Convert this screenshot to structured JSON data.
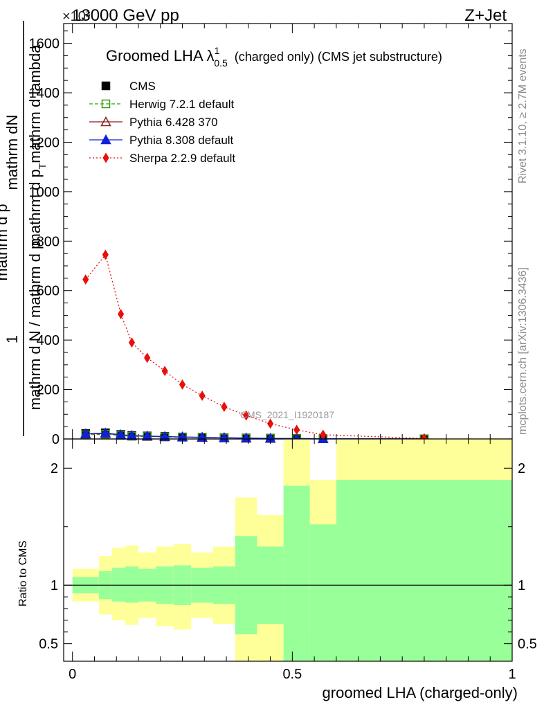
{
  "header": {
    "left": "13000 GeV pp",
    "right": "Z+Jet",
    "exponent": "×10³"
  },
  "side_labels": {
    "rivet": "Rivet 3.1.10, ≥ 2.7M events",
    "mcplots": "mcplots.cern.ch [arXiv:1306.3436]"
  },
  "watermark": "CMS_2021_I1920187",
  "chart_data": [
    {
      "type": "line",
      "title": "Groomed LHA λ",
      "title_sup": "1",
      "title_sub": "0.5",
      "title_suffix": "(charged only) (CMS jet substructure)",
      "ylabel_top": "1",
      "ylabel_frac_num": "mathrm dN",
      "ylabel_frac_den1": "mathrm d p",
      "ylabel_frac_sub": "T",
      "ylabel_frac_den2": "mathrm d lambda",
      "ylabel_bottom": "mathrm d N / mathrm d p",
      "ylabel_bottom_2": "mathrm d p",
      "ylim": [
        0,
        1680
      ],
      "xlim": [
        -0.02,
        1.0
      ],
      "yticks": [
        0,
        200,
        400,
        600,
        800,
        1000,
        1200,
        1400,
        1600
      ],
      "ytick_labels": [
        "0",
        "200",
        "400",
        "600",
        "800",
        "1000",
        "1200",
        "1400",
        "1600"
      ],
      "legend_placement": "top-left",
      "x": [
        0.03,
        0.075,
        0.11,
        0.135,
        0.17,
        0.21,
        0.25,
        0.295,
        0.345,
        0.395,
        0.45,
        0.51,
        0.57,
        0.8
      ],
      "series": [
        {
          "name": "CMS",
          "color": "#000000",
          "marker": "square-filled",
          "line": "none",
          "values": [
            22,
            25,
            18,
            14,
            12,
            10,
            8,
            7,
            5,
            4,
            3,
            2,
            1,
            0.5
          ]
        },
        {
          "name": "Herwig 7.2.1 default",
          "color": "#3a9a10",
          "marker": "square-open",
          "line": "dashed",
          "values": [
            17,
            19,
            14,
            11,
            10,
            8,
            7,
            6,
            4,
            3,
            2,
            1.5,
            1,
            0.5
          ]
        },
        {
          "name": "Pythia 6.428 370",
          "color": "#8b1a1a",
          "marker": "triangle-open",
          "line": "solid",
          "values": [
            20,
            22,
            16,
            13,
            11,
            9,
            8,
            6,
            5,
            3,
            2,
            1.5,
            1,
            0.5
          ]
        },
        {
          "name": "Pythia 8.308 default",
          "color": "#1020d8",
          "marker": "triangle-filled",
          "line": "solid",
          "values": [
            21,
            24,
            17,
            14,
            12,
            10,
            8,
            7,
            5,
            4,
            2.5,
            2,
            1,
            0.5
          ]
        },
        {
          "name": "Sherpa 2.2.9 default",
          "color": "#e8100c",
          "marker": "diamond-filled",
          "line": "dotted",
          "values": [
            645,
            745,
            505,
            390,
            328,
            275,
            220,
            175,
            130,
            95,
            62,
            37,
            17,
            2
          ]
        }
      ]
    },
    {
      "type": "area",
      "ylabel": "Ratio to CMS",
      "xlabel": "groomed LHA (charged-only)",
      "ylim": [
        0.35,
        2.25
      ],
      "xlim": [
        -0.02,
        1.0
      ],
      "yticks": [
        0.5,
        1,
        2
      ],
      "ytick_labels": [
        "0.5",
        "1",
        "2"
      ],
      "xticks": [
        0,
        0.5,
        1
      ],
      "xtick_labels": [
        "0",
        "0.5",
        "1"
      ],
      "reference_line": 1,
      "bins": [
        {
          "lo": 0.0,
          "hi": 0.06,
          "green_lo": 0.93,
          "green_hi": 1.07,
          "yellow_lo": 0.86,
          "yellow_hi": 1.14
        },
        {
          "lo": 0.06,
          "hi": 0.09,
          "green_lo": 0.88,
          "green_hi": 1.12,
          "yellow_lo": 0.75,
          "yellow_hi": 1.25
        },
        {
          "lo": 0.09,
          "hi": 0.12,
          "green_lo": 0.86,
          "green_hi": 1.15,
          "yellow_lo": 0.7,
          "yellow_hi": 1.32
        },
        {
          "lo": 0.12,
          "hi": 0.15,
          "green_lo": 0.85,
          "green_hi": 1.16,
          "yellow_lo": 0.66,
          "yellow_hi": 1.34
        },
        {
          "lo": 0.15,
          "hi": 0.19,
          "green_lo": 0.86,
          "green_hi": 1.14,
          "yellow_lo": 0.72,
          "yellow_hi": 1.28
        },
        {
          "lo": 0.19,
          "hi": 0.23,
          "green_lo": 0.84,
          "green_hi": 1.16,
          "yellow_lo": 0.65,
          "yellow_hi": 1.33
        },
        {
          "lo": 0.23,
          "hi": 0.27,
          "green_lo": 0.83,
          "green_hi": 1.17,
          "yellow_lo": 0.62,
          "yellow_hi": 1.35
        },
        {
          "lo": 0.27,
          "hi": 0.32,
          "green_lo": 0.85,
          "green_hi": 1.15,
          "yellow_lo": 0.72,
          "yellow_hi": 1.28
        },
        {
          "lo": 0.32,
          "hi": 0.37,
          "green_lo": 0.84,
          "green_hi": 1.16,
          "yellow_lo": 0.67,
          "yellow_hi": 1.33
        },
        {
          "lo": 0.37,
          "hi": 0.42,
          "green_lo": 0.58,
          "green_hi": 1.42,
          "yellow_lo": 0.35,
          "yellow_hi": 1.75
        },
        {
          "lo": 0.42,
          "hi": 0.48,
          "green_lo": 0.67,
          "green_hi": 1.33,
          "yellow_lo": 0.35,
          "yellow_hi": 1.6
        },
        {
          "lo": 0.48,
          "hi": 0.54,
          "green_lo": 0.35,
          "green_hi": 1.85,
          "yellow_lo": 0.35,
          "yellow_hi": 2.25
        },
        {
          "lo": 0.54,
          "hi": 0.6,
          "green_lo": 0.35,
          "green_hi": 1.52,
          "yellow_lo": 0.58,
          "yellow_hi": 1.9
        },
        {
          "lo": 0.6,
          "hi": 1.0,
          "green_lo": 0.35,
          "green_hi": 1.9,
          "yellow_lo": 0.35,
          "yellow_hi": 2.25
        }
      ]
    }
  ]
}
